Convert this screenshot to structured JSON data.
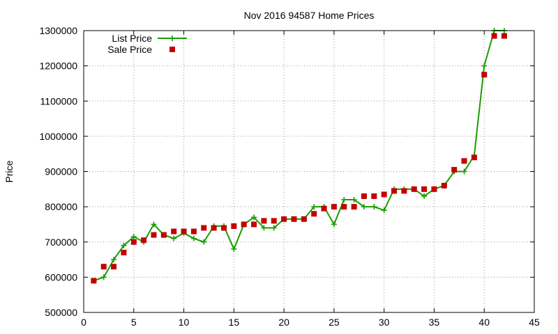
{
  "chart_data": {
    "type": "line",
    "title": "Nov 2016 94587 Home Prices",
    "xlabel": "",
    "ylabel": "Price",
    "xlim": [
      0,
      45
    ],
    "ylim": [
      500000,
      1300000
    ],
    "grid": true,
    "legend_position": "top-left",
    "x_ticks": [
      0,
      5,
      10,
      15,
      20,
      25,
      30,
      35,
      40,
      45
    ],
    "y_ticks": [
      500000,
      600000,
      700000,
      800000,
      900000,
      1000000,
      1100000,
      1200000,
      1300000
    ],
    "x_tick_labels": [
      "0",
      "5",
      "10",
      "15",
      "20",
      "25",
      "30",
      "35",
      "40",
      "45"
    ],
    "y_tick_labels": [
      "500000",
      "600000",
      "700000",
      "800000",
      "900000",
      "1000000",
      "1100000",
      "1200000",
      "1300000"
    ],
    "series": [
      {
        "name": "List Price",
        "style": "line+cross",
        "color": "#1a9c00",
        "x": [
          1,
          2,
          3,
          4,
          5,
          6,
          7,
          8,
          9,
          10,
          11,
          12,
          13,
          14,
          15,
          16,
          17,
          18,
          19,
          20,
          21,
          22,
          23,
          24,
          25,
          26,
          27,
          28,
          29,
          30,
          31,
          32,
          33,
          34,
          35,
          36,
          37,
          38,
          39,
          40,
          41,
          42
        ],
        "y": [
          590000,
          600000,
          650000,
          690000,
          715000,
          700000,
          750000,
          720000,
          710000,
          725000,
          710000,
          700000,
          745000,
          745000,
          680000,
          750000,
          770000,
          740000,
          740000,
          765000,
          765000,
          765000,
          800000,
          800000,
          750000,
          820000,
          820000,
          800000,
          800000,
          790000,
          850000,
          850000,
          850000,
          830000,
          850000,
          860000,
          900000,
          900000,
          945000,
          1200000,
          1300000,
          1300000
        ]
      },
      {
        "name": "Sale Price",
        "style": "square",
        "color": "#c40000",
        "x": [
          1,
          2,
          3,
          4,
          5,
          6,
          7,
          8,
          9,
          10,
          11,
          12,
          13,
          14,
          15,
          16,
          17,
          18,
          19,
          20,
          21,
          22,
          23,
          24,
          25,
          26,
          27,
          28,
          29,
          30,
          31,
          32,
          33,
          34,
          35,
          36,
          37,
          38,
          39,
          40,
          41,
          42
        ],
        "y": [
          590000,
          630000,
          630000,
          670000,
          700000,
          705000,
          720000,
          720000,
          730000,
          730000,
          730000,
          740000,
          740000,
          740000,
          745000,
          750000,
          750000,
          760000,
          760000,
          765000,
          765000,
          765000,
          780000,
          795000,
          800000,
          800000,
          800000,
          830000,
          830000,
          835000,
          845000,
          845000,
          850000,
          850000,
          850000,
          860000,
          905000,
          930000,
          940000,
          1175000,
          1285000,
          1285000
        ]
      }
    ]
  }
}
